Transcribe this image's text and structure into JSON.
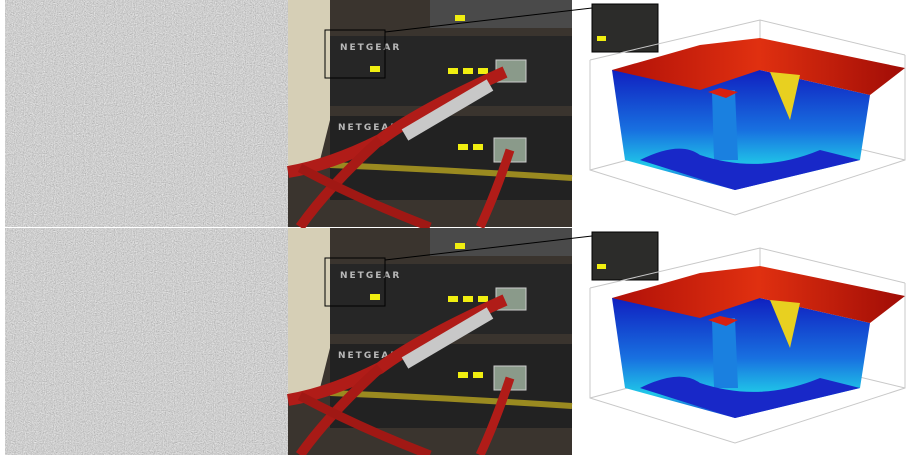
{
  "rows": [
    {
      "labels": [
        "NETGEAR",
        "NETGEAR"
      ]
    },
    {
      "labels": [
        "NETGEAR",
        "NETGEAR"
      ]
    }
  ]
}
